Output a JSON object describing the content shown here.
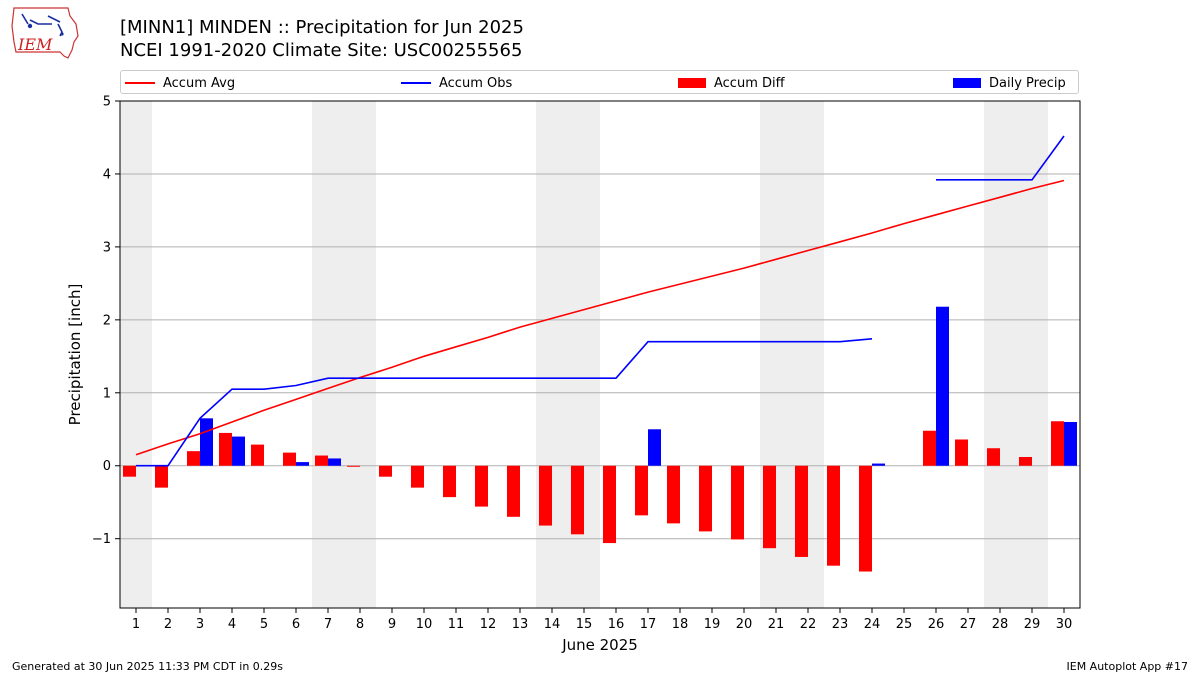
{
  "header": {
    "title_line1": "[MINN1] MINDEN :: Precipitation for Jun 2025",
    "title_line2": "NCEI 1991-2020 Climate Site: USC00255565",
    "logo_text": "IEM"
  },
  "legend": [
    {
      "label": "Accum Avg",
      "color": "#ff0000",
      "kind": "line"
    },
    {
      "label": "Accum Obs",
      "color": "#0000ff",
      "kind": "line"
    },
    {
      "label": "Accum Diff",
      "color": "#ff0000",
      "kind": "bar"
    },
    {
      "label": "Daily Precip",
      "color": "#0000ff",
      "kind": "bar"
    }
  ],
  "footer": {
    "left": "Generated at 30 Jun 2025 11:33 PM CDT in 0.29s",
    "right": "IEM Autoplot App #17"
  },
  "chart_data": {
    "type": "bar",
    "xlabel": "June 2025",
    "ylabel": "Precipitation [inch]",
    "x": [
      1,
      2,
      3,
      4,
      5,
      6,
      7,
      8,
      9,
      10,
      11,
      12,
      13,
      14,
      15,
      16,
      17,
      18,
      19,
      20,
      21,
      22,
      23,
      24,
      25,
      26,
      27,
      28,
      29,
      30
    ],
    "ylim": [
      -1.95,
      5
    ],
    "yticks": [
      -1,
      0,
      1,
      2,
      3,
      4,
      5
    ],
    "ytick_labels": [
      "−1",
      "0",
      "1",
      "2",
      "3",
      "4",
      "5"
    ],
    "grid": true,
    "weekend_shading": [
      [
        1,
        1
      ],
      [
        7,
        8
      ],
      [
        14,
        15
      ],
      [
        21,
        22
      ],
      [
        28,
        29
      ]
    ],
    "series": [
      {
        "name": "Accum Avg",
        "type": "line",
        "color": "#ff0000",
        "values": [
          0.15,
          0.3,
          0.44,
          0.6,
          0.76,
          0.91,
          1.06,
          1.21,
          1.35,
          1.5,
          1.63,
          1.76,
          1.9,
          2.02,
          2.14,
          2.26,
          2.38,
          2.49,
          2.6,
          2.71,
          2.83,
          2.95,
          3.07,
          3.19,
          3.32,
          3.44,
          3.56,
          3.68,
          3.8,
          3.91
        ]
      },
      {
        "name": "Accum Obs",
        "type": "line",
        "color": "#0000ff",
        "values": [
          0.0,
          0.0,
          0.65,
          1.05,
          1.05,
          1.1,
          1.2,
          1.2,
          1.2,
          1.2,
          1.2,
          1.2,
          1.2,
          1.2,
          1.2,
          1.2,
          1.7,
          1.7,
          1.7,
          1.7,
          1.7,
          1.7,
          1.7,
          1.74,
          null,
          3.92,
          3.92,
          3.92,
          3.92,
          4.52
        ]
      },
      {
        "name": "Accum Diff",
        "type": "bar",
        "color": "#ff0000",
        "values": [
          -0.15,
          -0.3,
          0.2,
          0.45,
          0.29,
          0.18,
          0.14,
          -0.01,
          -0.15,
          -0.3,
          -0.43,
          -0.56,
          -0.7,
          -0.82,
          -0.94,
          -1.06,
          -0.68,
          -0.79,
          -0.9,
          -1.01,
          -1.13,
          -1.25,
          -1.37,
          -1.45,
          null,
          0.48,
          0.36,
          0.24,
          0.12,
          0.61
        ]
      },
      {
        "name": "Daily Precip",
        "type": "bar",
        "color": "#0000ff",
        "values": [
          0.0,
          0.0,
          0.65,
          0.4,
          0.0,
          0.05,
          0.1,
          0.0,
          0.0,
          0.0,
          0.0,
          0.0,
          0.0,
          0.0,
          0.0,
          0.0,
          0.5,
          0.0,
          0.0,
          0.0,
          0.0,
          0.0,
          0.0,
          0.03,
          null,
          2.18,
          0.0,
          0.0,
          0.0,
          0.6
        ]
      }
    ]
  }
}
